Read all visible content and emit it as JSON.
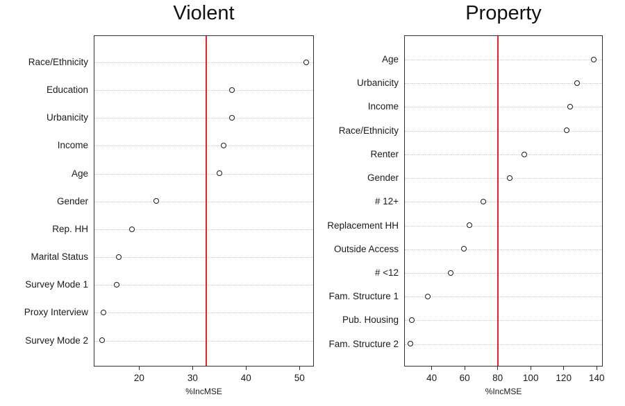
{
  "colors": {
    "background": "#ffffff",
    "refline": "#ee2224",
    "point_stroke": "#1a1a1a",
    "point_fill": "#ffffff",
    "grid": "#c6c6c6",
    "box_border": "#2e2e2e",
    "text": "#111111"
  },
  "chart_data": [
    {
      "type": "scatter",
      "subtype": "dotchart",
      "title": "Violent",
      "xlabel": "%IncMSE",
      "categories": [
        "Race/Ethnicity",
        "Education",
        "Urbanicity",
        "Income",
        "Age",
        "Gender",
        "Rep. HH",
        "Marital Status",
        "Survey Mode 1",
        "Proxy Interview",
        "Survey Mode 2"
      ],
      "values": [
        51.3,
        37.4,
        37.4,
        35.9,
        35.0,
        23.3,
        18.7,
        16.2,
        15.8,
        13.3,
        13.1
      ],
      "xticks": [
        20,
        30,
        40,
        50
      ],
      "xlim": [
        11.5,
        52.7
      ],
      "refline": 32.5,
      "grid": "horizontal-dotted",
      "legend": "none"
    },
    {
      "type": "scatter",
      "subtype": "dotchart",
      "title": "Property",
      "xlabel": "%IncMSE",
      "categories": [
        "Age",
        "Urbanicity",
        "Income",
        "Race/Ethnicity",
        "Renter",
        "Gender",
        "# 12+",
        "Replacement HH",
        "Outside Access",
        "# <12",
        "Fam. Structure 1",
        "Pub. Housing",
        "Fam. Structure 2"
      ],
      "values": [
        138.3,
        128.4,
        123.9,
        121.8,
        96.3,
        87.4,
        71.3,
        62.9,
        59.8,
        51.5,
        37.9,
        28.2,
        27.4
      ],
      "xticks": [
        40,
        60,
        80,
        100,
        120,
        140
      ],
      "xlim": [
        23.3,
        143.7
      ],
      "refline": 80.3,
      "grid": "horizontal-dotted",
      "legend": "none"
    }
  ]
}
